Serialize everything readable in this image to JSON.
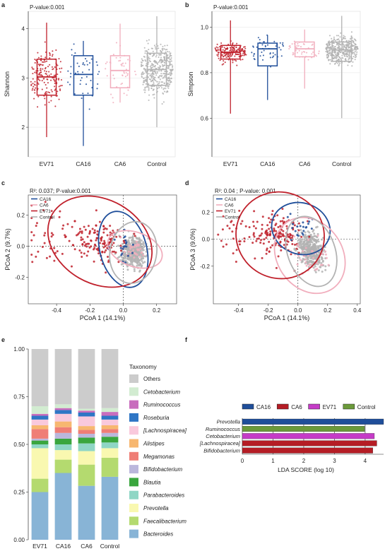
{
  "panels": {
    "a": "a",
    "b": "b",
    "c": "c",
    "d": "d",
    "e": "e",
    "f": "f"
  },
  "colors": {
    "EV71": "#c0212c",
    "CA16": "#1f4e9a",
    "CA6": "#f1aebd",
    "Control": "#b3b3b3"
  },
  "chart_data": [
    {
      "type": "box",
      "panel": "a",
      "annotation": "P-value:0.001",
      "ylabel": "Shannon",
      "ylim": [
        1.4,
        4.35
      ],
      "yticks": [
        2,
        3,
        4
      ],
      "categories": [
        "EV71",
        "CA16",
        "CA6",
        "Control"
      ],
      "boxes": [
        {
          "q1": 2.65,
          "median": 3.02,
          "q3": 3.38,
          "lo": 1.8,
          "hi": 4.12
        },
        {
          "q1": 2.65,
          "median": 3.07,
          "q3": 3.45,
          "lo": 1.62,
          "hi": 3.75
        },
        {
          "q1": 2.8,
          "median": 3.15,
          "q3": 3.45,
          "lo": 2.5,
          "hi": 4.1
        },
        {
          "q1": 2.85,
          "median": 3.17,
          "q3": 3.5,
          "lo": 2.0,
          "hi": 4.25
        }
      ]
    },
    {
      "type": "box",
      "panel": "b",
      "annotation": "P-value:0.001",
      "ylabel": "Simpson",
      "ylim": [
        0.43,
        1.07
      ],
      "yticks": [
        0.6,
        0.8,
        1.0
      ],
      "categories": [
        "EV71",
        "CA16",
        "CA6",
        "Control"
      ],
      "boxes": [
        {
          "q1": 0.86,
          "median": 0.89,
          "q3": 0.92,
          "lo": 0.62,
          "hi": 1.03
        },
        {
          "q1": 0.83,
          "median": 0.905,
          "q3": 0.93,
          "lo": 0.68,
          "hi": 0.965
        },
        {
          "q1": 0.87,
          "median": 0.905,
          "q3": 0.935,
          "lo": 0.73,
          "hi": 0.99
        },
        {
          "q1": 0.85,
          "median": 0.9,
          "q3": 0.935,
          "lo": 0.6,
          "hi": 1.05
        }
      ]
    },
    {
      "type": "scatter",
      "panel": "c",
      "annotation": "R²: 0.037; P-value:0.001",
      "xlabel": "PCoA 1 (14.1%)",
      "ylabel": "PCoA 2 (9.7%)",
      "xlim": [
        -0.57,
        0.32
      ],
      "ylim": [
        -0.37,
        0.33
      ],
      "xticks": [
        -0.4,
        -0.2,
        0.0,
        0.2
      ],
      "yticks": [
        -0.2,
        0.0,
        0.2
      ],
      "legend": [
        "CA16",
        "CA6",
        "EV71",
        "Control"
      ],
      "ellipses": [
        {
          "group": "CA16",
          "cx": 0.0,
          "cy": -0.02,
          "rx": 0.14,
          "ry": 0.25,
          "angle": 15
        },
        {
          "group": "CA6",
          "cx": 0.07,
          "cy": -0.02,
          "rx": 0.17,
          "ry": 0.11,
          "angle": -20
        },
        {
          "group": "EV71",
          "cx": -0.14,
          "cy": 0.03,
          "rx": 0.33,
          "ry": 0.27,
          "angle": -30
        },
        {
          "group": "Control",
          "cx": 0.06,
          "cy": -0.04,
          "rx": 0.14,
          "ry": 0.2,
          "angle": -10
        }
      ]
    },
    {
      "type": "scatter",
      "panel": "d",
      "annotation": "R²: 0.04 ; P-value: 0.001",
      "xlabel": "PCoA 1 (14.1%)",
      "ylabel": "PCoA 3 (9.0%)",
      "xlim": [
        -0.57,
        0.42
      ],
      "ylim": [
        -0.48,
        0.33
      ],
      "xticks": [
        -0.4,
        -0.2,
        0.0,
        0.2,
        0.4
      ],
      "yticks": [
        -0.2,
        0.0,
        0.2
      ],
      "legend": [
        "CA16",
        "CA6",
        "EV71",
        "Control"
      ],
      "ellipses": [
        {
          "group": "CA16",
          "cx": 0.02,
          "cy": 0.08,
          "rx": 0.2,
          "ry": 0.19,
          "angle": -20
        },
        {
          "group": "CA6",
          "cx": 0.08,
          "cy": -0.12,
          "rx": 0.22,
          "ry": 0.3,
          "angle": 35
        },
        {
          "group": "EV71",
          "cx": -0.12,
          "cy": 0.03,
          "rx": 0.3,
          "ry": 0.32,
          "angle": -30
        },
        {
          "group": "Control",
          "cx": 0.09,
          "cy": -0.09,
          "rx": 0.16,
          "ry": 0.27,
          "angle": 20
        }
      ]
    },
    {
      "type": "stacked-bar",
      "panel": "e",
      "categories": [
        "EV71",
        "CA16",
        "CA6",
        "Control"
      ],
      "ylim": [
        0,
        1
      ],
      "yticks": [
        0.0,
        0.25,
        0.5,
        0.75,
        1.0
      ],
      "yticklabels": [
        "0.00",
        "0.25",
        "0.50",
        "0.75",
        "1.00"
      ],
      "legend_title": "Taxonomy",
      "series": [
        {
          "name": "Bacteroides",
          "color": "#88b4d6",
          "values": [
            0.25,
            0.35,
            0.28,
            0.33
          ]
        },
        {
          "name": "Faecalibacterium",
          "color": "#b4da6f",
          "values": [
            0.07,
            0.07,
            0.11,
            0.1
          ]
        },
        {
          "name": "Prevotella",
          "color": "#f9f8b0",
          "values": [
            0.16,
            0.05,
            0.07,
            0.05
          ]
        },
        {
          "name": "Parabacteroides",
          "color": "#8fd6c5",
          "values": [
            0.02,
            0.03,
            0.04,
            0.03
          ]
        },
        {
          "name": "Blautia",
          "color": "#3aa63e",
          "values": [
            0.02,
            0.03,
            0.03,
            0.03
          ]
        },
        {
          "name": "Bifidobacterium",
          "color": "#bbb7dc",
          "values": [
            0.01,
            0.03,
            0.02,
            0.02
          ]
        },
        {
          "name": "Megamonas",
          "color": "#ef7e76",
          "values": [
            0.05,
            0.03,
            0.02,
            0.02
          ]
        },
        {
          "name": "Alistipes",
          "color": "#f7b770",
          "values": [
            0.02,
            0.03,
            0.02,
            0.02
          ]
        },
        {
          "name": "[Lachnospiracea]",
          "color": "#f9c9dc",
          "values": [
            0.03,
            0.04,
            0.05,
            0.03
          ]
        },
        {
          "name": "Roseburia",
          "color": "#2f76c5",
          "values": [
            0.02,
            0.02,
            0.02,
            0.02
          ]
        },
        {
          "name": "Ruminococcus",
          "color": "#c86dbd",
          "values": [
            0.01,
            0.01,
            0.01,
            0.02
          ]
        },
        {
          "name": "Cetobacterium",
          "color": "#d2ecd1",
          "values": [
            0.04,
            0.02,
            0.01,
            0.02
          ]
        },
        {
          "name": "Others",
          "color": "#cccccc",
          "values": [
            0.3,
            0.29,
            0.31,
            0.31
          ]
        }
      ]
    },
    {
      "type": "bar",
      "orientation": "horizontal",
      "panel": "f",
      "xlabel": "LDA SCORE (log 10)",
      "xlim": [
        0,
        4.6
      ],
      "xticks": [
        0,
        1,
        2,
        3,
        4
      ],
      "legend": [
        {
          "name": "CA16",
          "color": "#1f4e9a"
        },
        {
          "name": "CA6",
          "color": "#b51d25"
        },
        {
          "name": "EV71",
          "color": "#c53bc7"
        },
        {
          "name": "Control",
          "color": "#6b9a3a"
        }
      ],
      "bars": [
        {
          "label": "Prevotella",
          "group": "CA16",
          "value": 4.6
        },
        {
          "label": "Ruminococcus",
          "group": "Control",
          "value": 3.98
        },
        {
          "label": "Cetobacterium",
          "group": "EV71",
          "value": 4.3
        },
        {
          "label": "[Lachnospiracea]",
          "group": "CA6",
          "value": 4.38
        },
        {
          "label": "Bifidobacterium",
          "group": "CA6",
          "value": 4.25
        }
      ]
    }
  ]
}
